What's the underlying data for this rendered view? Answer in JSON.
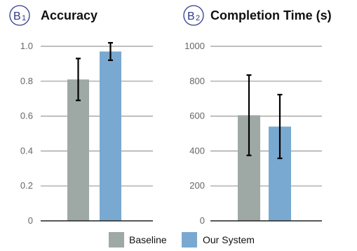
{
  "chart_data": [
    {
      "type": "bar",
      "panel_letter": "B",
      "panel_number": "1",
      "title": "Accuracy",
      "categories": [
        "Baseline",
        "Our System"
      ],
      "values": [
        0.81,
        0.97
      ],
      "error_bars": [
        [
          0.69,
          0.93
        ],
        [
          0.92,
          1.02
        ]
      ],
      "ylim": [
        0,
        1.0
      ],
      "yticks": [
        0,
        0.2,
        0.4,
        0.6,
        0.8,
        1.0
      ],
      "ytick_labels": [
        "0",
        "0.2",
        "0.4",
        "0.6",
        "0.8",
        "1.0"
      ],
      "grid": true,
      "colors": [
        "#9ea9a6",
        "#79a9d1"
      ]
    },
    {
      "type": "bar",
      "panel_letter": "B",
      "panel_number": "2",
      "title": "Completion Time (s)",
      "categories": [
        "Baseline",
        "Our System"
      ],
      "values": [
        605,
        540
      ],
      "error_bars": [
        [
          375,
          835
        ],
        [
          358,
          723
        ]
      ],
      "ylim": [
        0,
        1000
      ],
      "yticks": [
        0,
        200,
        400,
        600,
        800,
        1000
      ],
      "ytick_labels": [
        "0",
        "200",
        "400",
        "600",
        "800",
        "1000"
      ],
      "grid": true,
      "colors": [
        "#9ea9a6",
        "#79a9d1"
      ]
    }
  ],
  "legend": {
    "placement": "bottom",
    "items": [
      {
        "label": "Baseline",
        "color": "#9ea9a6"
      },
      {
        "label": "Our System",
        "color": "#79a9d1"
      }
    ]
  },
  "colors": {
    "grid": "#9a9a9a",
    "axis": "#222222",
    "error_bar": "#000000",
    "panel_id": "#2e3a8c"
  }
}
